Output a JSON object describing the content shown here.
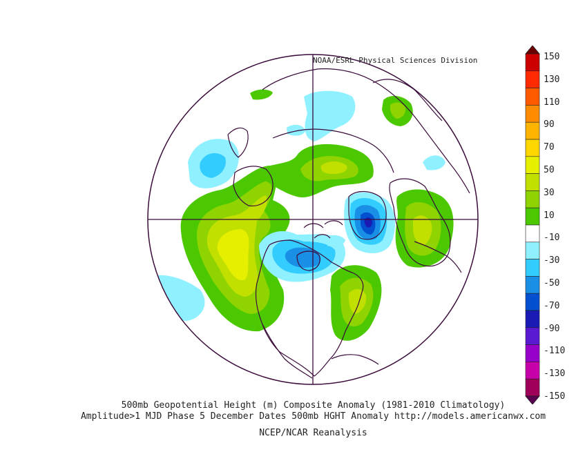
{
  "credit": "NOAA/ESRL Physical Sciences Division",
  "title_line_1": "500mb Geopotential Height (m) Composite Anomaly (1981-2010 Climatology)",
  "title_line_2": "Amplitude>1 MJD Phase 5 December Dates 500mb HGHT Anomaly http://models.americanwx.com",
  "title_line_3": "NCEP/NCAR Reanalysis",
  "colorbar": {
    "labels": [
      "150",
      "130",
      "110",
      "90",
      "70",
      "50",
      "30",
      "10",
      "-10",
      "-30",
      "-50",
      "-70",
      "-90",
      "-110",
      "-130",
      "-150"
    ],
    "colors": [
      "#6b0000",
      "#cc0000",
      "#ff2a00",
      "#ff5a00",
      "#ff8c00",
      "#ffb400",
      "#ffd700",
      "#e6ef00",
      "#c2e000",
      "#8fd400",
      "#4cc800",
      "#ffffff",
      "#8ff0ff",
      "#33ccff",
      "#1a8fe6",
      "#0050d0",
      "#1a1ab4",
      "#5a1ad2",
      "#9600c8",
      "#c800aa",
      "#a0005a",
      "#5a0050"
    ]
  },
  "anomaly_colors": {
    "pos_10": "#4cc800",
    "pos_30": "#8fd400",
    "pos_50": "#c2e000",
    "pos_70": "#e6ef00",
    "neg_10": "#8ff0ff",
    "neg_30": "#33ccff",
    "neg_50": "#1a8fe6",
    "neg_70": "#0050d0",
    "neg_90": "#1a1ab4"
  }
}
